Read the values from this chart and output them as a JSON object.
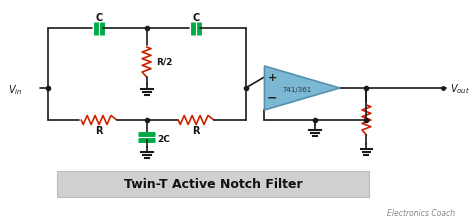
{
  "title": "Twin-T Active Notch Filter",
  "subtitle": "Electronics Coach",
  "bg_color": "#ffffff",
  "wire_color": "#1a1a1a",
  "resistor_color": "#cc2200",
  "capacitor_color": "#00aa44",
  "opamp_color": "#7ab8d4",
  "opamp_edge": "#5590b0",
  "label_color": "#111111",
  "title_bg": "#d0d0d0",
  "title_edge": "#bbbbbb",
  "subtitle_color": "#888888",
  "vin_label": "$V_{in}$",
  "vout_label": "$V_{out}$",
  "cap_label1": "C",
  "cap_label2": "C",
  "cap_label3": "2C",
  "res_label1": "R",
  "res_label2": "R",
  "res_label3": "R/2",
  "opamp_label": "741/361",
  "plus_label": "+",
  "minus_label": "−"
}
